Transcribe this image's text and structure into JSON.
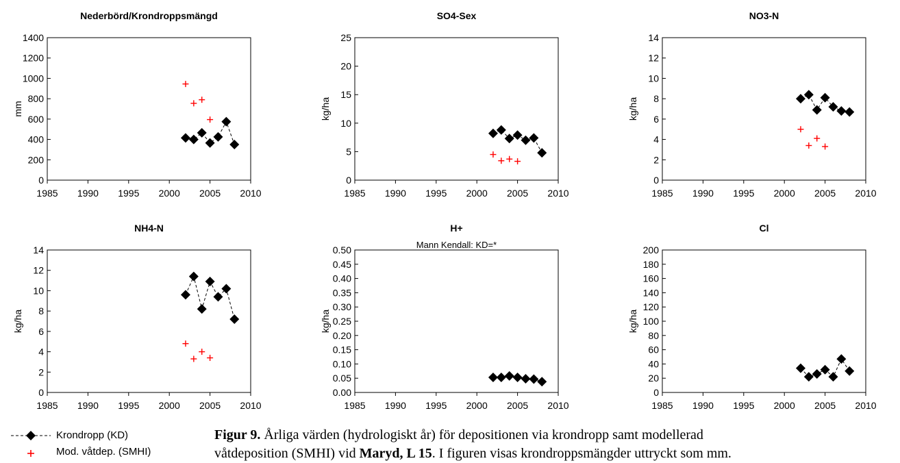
{
  "chart_data": [
    {
      "type": "scatter",
      "title": "Nederbörd/Krondroppsmängd",
      "subtitle": "",
      "ylabel": "mm",
      "xlim": [
        1985,
        2010
      ],
      "ylim": [
        0,
        1400
      ],
      "xticks": [
        1985,
        1990,
        1995,
        2000,
        2005,
        2010
      ],
      "yticks": [
        0,
        200,
        400,
        600,
        800,
        1000,
        1200,
        1400
      ],
      "series": [
        {
          "name": "Krondropp (KD)",
          "x": [
            2002,
            2003,
            2004,
            2005,
            2006,
            2007,
            2008
          ],
          "values": [
            415,
            400,
            465,
            365,
            425,
            575,
            350
          ]
        },
        {
          "name": "Mod. våtdep. (SMHI)",
          "x": [
            2002,
            2003,
            2004,
            2005
          ],
          "values": [
            945,
            755,
            790,
            595
          ]
        }
      ]
    },
    {
      "type": "scatter",
      "title": "SO4-Sex",
      "subtitle": "",
      "ylabel": "kg/ha",
      "xlim": [
        1985,
        2010
      ],
      "ylim": [
        0,
        25
      ],
      "xticks": [
        1985,
        1990,
        1995,
        2000,
        2005,
        2010
      ],
      "yticks": [
        0,
        5,
        10,
        15,
        20,
        25
      ],
      "series": [
        {
          "name": "Krondropp (KD)",
          "x": [
            2002,
            2003,
            2004,
            2005,
            2006,
            2007,
            2008
          ],
          "values": [
            8.2,
            8.8,
            7.3,
            7.9,
            7.0,
            7.4,
            4.8
          ]
        },
        {
          "name": "Mod. våtdep. (SMHI)",
          "x": [
            2002,
            2003,
            2004,
            2005
          ],
          "values": [
            4.5,
            3.4,
            3.7,
            3.3
          ]
        }
      ]
    },
    {
      "type": "scatter",
      "title": "NO3-N",
      "subtitle": "",
      "ylabel": "kg/ha",
      "xlim": [
        1985,
        2010
      ],
      "ylim": [
        0,
        14
      ],
      "xticks": [
        1985,
        1990,
        1995,
        2000,
        2005,
        2010
      ],
      "yticks": [
        0,
        2,
        4,
        6,
        8,
        10,
        12,
        14
      ],
      "series": [
        {
          "name": "Krondropp (KD)",
          "x": [
            2002,
            2003,
            2004,
            2005,
            2006,
            2007,
            2008
          ],
          "values": [
            8.0,
            8.4,
            6.9,
            8.1,
            7.2,
            6.8,
            6.7
          ]
        },
        {
          "name": "Mod. våtdep. (SMHI)",
          "x": [
            2002,
            2003,
            2004,
            2005
          ],
          "values": [
            5.0,
            3.4,
            4.1,
            3.3
          ]
        }
      ]
    },
    {
      "type": "scatter",
      "title": "NH4-N",
      "subtitle": "",
      "ylabel": "kg/ha",
      "xlim": [
        1985,
        2010
      ],
      "ylim": [
        0,
        14
      ],
      "xticks": [
        1985,
        1990,
        1995,
        2000,
        2005,
        2010
      ],
      "yticks": [
        0,
        2,
        4,
        6,
        8,
        10,
        12,
        14
      ],
      "series": [
        {
          "name": "Krondropp (KD)",
          "x": [
            2002,
            2003,
            2004,
            2005,
            2006,
            2007,
            2008
          ],
          "values": [
            9.6,
            11.4,
            8.2,
            10.9,
            9.4,
            10.2,
            7.2
          ]
        },
        {
          "name": "Mod. våtdep. (SMHI)",
          "x": [
            2002,
            2003,
            2004,
            2005
          ],
          "values": [
            4.8,
            3.3,
            4.0,
            3.4
          ]
        }
      ]
    },
    {
      "type": "scatter",
      "title": "H+",
      "subtitle": "Mann Kendall: KD=*",
      "ylabel": "kg/ha",
      "xlim": [
        1985,
        2010
      ],
      "ylim": [
        0,
        0.5
      ],
      "xticks": [
        1985,
        1990,
        1995,
        2000,
        2005,
        2010
      ],
      "yticks": [
        "0.00",
        "0.05",
        "0.10",
        "0.15",
        "0.20",
        "0.25",
        "0.30",
        "0.35",
        "0.40",
        "0.45",
        "0.50"
      ],
      "series": [
        {
          "name": "Krondropp (KD)",
          "x": [
            2002,
            2003,
            2004,
            2005,
            2006,
            2007,
            2008
          ],
          "values": [
            0.053,
            0.053,
            0.058,
            0.053,
            0.048,
            0.047,
            0.038
          ]
        },
        {
          "name": "Mod. våtdep. (SMHI)",
          "x": [],
          "values": []
        }
      ]
    },
    {
      "type": "scatter",
      "title": "Cl",
      "subtitle": "",
      "ylabel": "kg/ha",
      "xlim": [
        1985,
        2010
      ],
      "ylim": [
        0,
        200
      ],
      "xticks": [
        1985,
        1990,
        1995,
        2000,
        2005,
        2010
      ],
      "yticks": [
        0,
        20,
        40,
        60,
        80,
        100,
        120,
        140,
        160,
        180,
        200
      ],
      "series": [
        {
          "name": "Krondropp (KD)",
          "x": [
            2002,
            2003,
            2004,
            2005,
            2006,
            2007,
            2008
          ],
          "values": [
            34,
            22,
            26,
            32,
            22,
            47,
            30
          ]
        },
        {
          "name": "Mod. våtdep. (SMHI)",
          "x": [],
          "values": []
        }
      ]
    }
  ],
  "legend": {
    "kd_label": "Krondropp (KD)",
    "smhi_label": "Mod. våtdep. (SMHI)",
    "kd_color": "#000000",
    "smhi_color": "#ff0000",
    "kd_marker": "diamond-marker",
    "smhi_marker": "plus-marker"
  },
  "caption": {
    "label": "Figur 9.",
    "line1_text": " Årliga värden (hydrologiskt år) för depositionen via krondropp samt modellerad",
    "line2_pre": "våtdeposition (SMHI) vid ",
    "line2_bold": "Maryd, L 15",
    "line2_post": ". I figuren visas krondroppsmängder uttryckt som mm."
  }
}
